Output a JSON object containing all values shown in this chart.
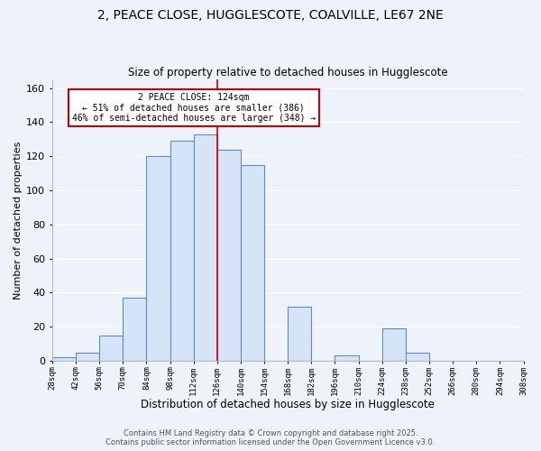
{
  "title": "2, PEACE CLOSE, HUGGLESCOTE, COALVILLE, LE67 2NE",
  "subtitle": "Size of property relative to detached houses in Hugglescote",
  "xlabel": "Distribution of detached houses by size in Hugglescote",
  "ylabel": "Number of detached properties",
  "bin_edges": [
    28,
    42,
    56,
    70,
    84,
    98,
    112,
    126,
    140,
    154,
    168,
    182,
    196,
    210,
    224,
    238,
    252,
    266,
    280,
    294,
    308
  ],
  "counts": [
    2,
    5,
    15,
    37,
    120,
    129,
    133,
    124,
    115,
    0,
    32,
    0,
    3,
    0,
    19,
    5,
    0,
    0,
    0,
    0
  ],
  "bar_color": "#d6e4f7",
  "bar_edge_color": "#5b8ec4",
  "vline_x": 126,
  "vline_color": "#cc0000",
  "annotation_text": "2 PEACE CLOSE: 124sqm\n← 51% of detached houses are smaller (386)\n46% of semi-detached houses are larger (348) →",
  "annotation_box_color": "#ffffff",
  "annotation_box_edge_color": "#cc0000",
  "ylim": [
    0,
    165
  ],
  "tick_labels": [
    "28sqm",
    "42sqm",
    "56sqm",
    "70sqm",
    "84sqm",
    "98sqm",
    "112sqm",
    "126sqm",
    "140sqm",
    "154sqm",
    "168sqm",
    "182sqm",
    "196sqm",
    "210sqm",
    "224sqm",
    "238sqm",
    "252sqm",
    "266sqm",
    "280sqm",
    "294sqm",
    "308sqm"
  ],
  "footer_line1": "Contains HM Land Registry data © Crown copyright and database right 2025.",
  "footer_line2": "Contains public sector information licensed under the Open Government Licence v3.0.",
  "background_color": "#eef2fb",
  "grid_color": "#ffffff",
  "yticks": [
    0,
    20,
    40,
    60,
    80,
    100,
    120,
    140,
    160
  ]
}
